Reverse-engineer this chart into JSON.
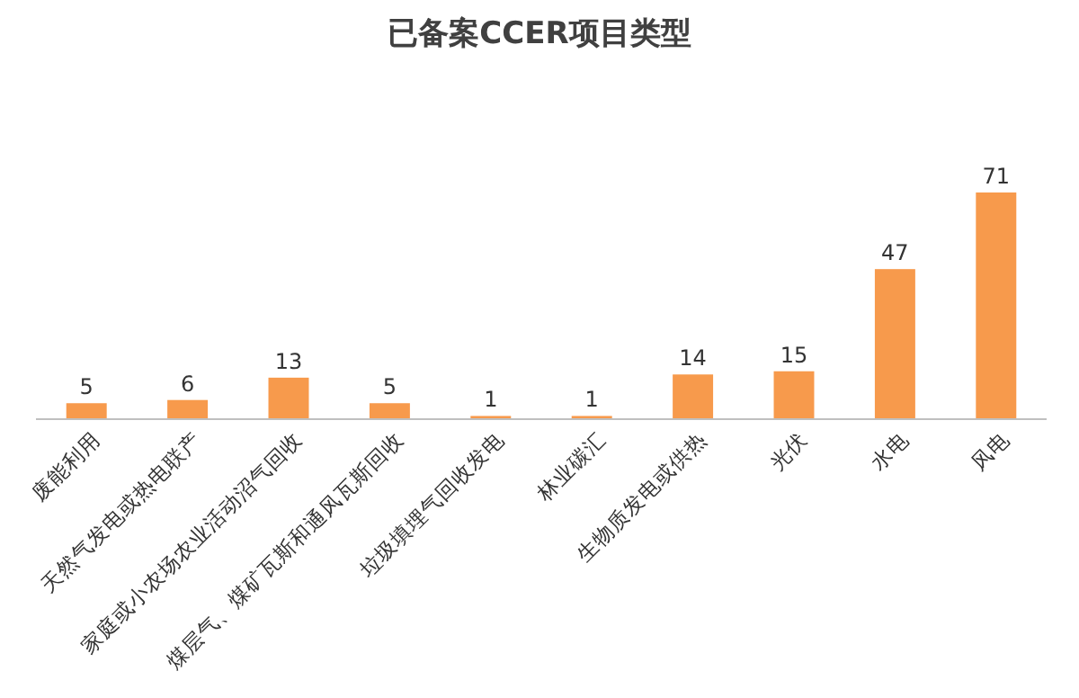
{
  "chart_data": {
    "type": "bar",
    "title": "已备案CCER项目类型",
    "categories": [
      "废能利用",
      "天然气发电或热电联产",
      "家庭或小农场农业活动沼气回收",
      "煤层气、煤矿瓦斯和通风瓦斯回收",
      "垃圾填埋气回收发电",
      "林业碳汇",
      "生物质发电或供热",
      "光伏",
      "水电",
      "风电"
    ],
    "values": [
      5,
      6,
      13,
      5,
      1,
      1,
      14,
      15,
      47,
      71
    ],
    "color": "#f79a4c",
    "data_labels": true
  }
}
